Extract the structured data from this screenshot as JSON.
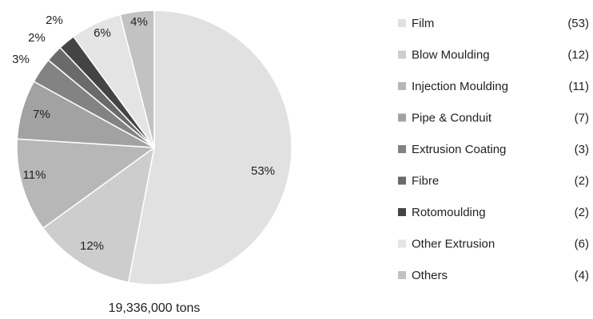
{
  "chart_data": {
    "type": "pie",
    "caption": "19,336,000 tons",
    "legend_position": "right",
    "slices": [
      {
        "label": "Film",
        "value": 53,
        "pct_label": "53%",
        "legend_value": "(53)",
        "color": "#e1e1e1"
      },
      {
        "label": "Blow Moulding",
        "value": 12,
        "pct_label": "12%",
        "legend_value": "(12)",
        "color": "#cdcdcd"
      },
      {
        "label": "Injection Moulding",
        "value": 11,
        "pct_label": "11%",
        "legend_value": "(11)",
        "color": "#b7b7b7"
      },
      {
        "label": "Pipe & Conduit",
        "value": 7,
        "pct_label": "7%",
        "legend_value": "(7)",
        "color": "#a2a2a2"
      },
      {
        "label": "Extrusion Coating",
        "value": 3,
        "pct_label": "3%",
        "legend_value": "(3)",
        "color": "#838383"
      },
      {
        "label": "Fibre",
        "value": 2,
        "pct_label": "2%",
        "legend_value": "(2)",
        "color": "#6a6a6a"
      },
      {
        "label": "Rotomoulding",
        "value": 2,
        "pct_label": "2%",
        "legend_value": "(2)",
        "color": "#444444"
      },
      {
        "label": "Other Extrusion",
        "value": 6,
        "pct_label": "6%",
        "legend_value": "(6)",
        "color": "#e4e4e4"
      },
      {
        "label": "Others",
        "value": 4,
        "pct_label": "4%",
        "legend_value": "(4)",
        "color": "#c2c2c2"
      }
    ]
  }
}
